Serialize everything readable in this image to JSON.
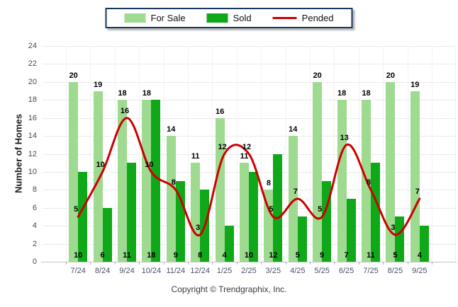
{
  "chart_data": {
    "type": "bar+line",
    "categories": [
      "7/24",
      "8/24",
      "9/24",
      "10/24",
      "11/24",
      "12/24",
      "1/25",
      "2/25",
      "3/25",
      "4/25",
      "5/25",
      "6/25",
      "7/25",
      "8/25",
      "9/25"
    ],
    "series": [
      {
        "name": "For Sale",
        "type": "bar",
        "color": "#9EDA90",
        "values": [
          20,
          19,
          18,
          18,
          14,
          11,
          16,
          11,
          8,
          14,
          20,
          18,
          18,
          20,
          19
        ]
      },
      {
        "name": "Sold",
        "type": "bar",
        "color": "#0FA818",
        "values": [
          10,
          6,
          11,
          18,
          9,
          8,
          4,
          10,
          12,
          5,
          9,
          7,
          11,
          5,
          4
        ]
      },
      {
        "name": "Pended",
        "type": "line",
        "color": "#CC0000",
        "values": [
          5,
          10,
          16,
          10,
          8,
          3,
          12,
          12,
          5,
          7,
          5,
          13,
          8,
          3,
          7
        ]
      }
    ],
    "ylabel": "Number of Homes",
    "xlabel": "",
    "ylim": [
      0,
      24
    ],
    "ytick_step": 2,
    "grid": true,
    "legend_position": "top",
    "value_labels": true
  },
  "copyright": "Copyright © Trendgraphix, Inc."
}
